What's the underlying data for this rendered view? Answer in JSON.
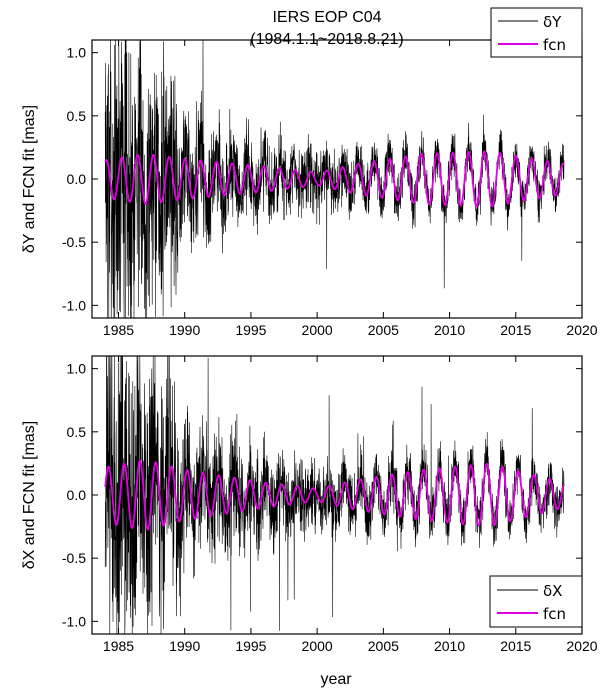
{
  "title_line1": "IERS EOP C04",
  "title_line2": "(1984.1.1~2018.8.21)",
  "colors": {
    "data_series": "#000000",
    "fit_series": "#e000e0"
  },
  "chart_data": [
    {
      "type": "line",
      "panel": "top",
      "xlabel": "",
      "ylabel": "δY and FCN fit [mas]",
      "xlim": [
        1983,
        2020
      ],
      "ylim": [
        -1.1,
        1.1
      ],
      "x_ticks": [
        "1985",
        "1990",
        "1995",
        "2000",
        "2005",
        "2010",
        "2015",
        "2020"
      ],
      "y_ticks": [
        "1.0",
        "0.5",
        "0.0",
        "-0.5",
        "-1.0"
      ],
      "legend_position": "top-right",
      "series": [
        {
          "name": "δY",
          "style": "noisy daily series",
          "x_range": [
            1984.0,
            2018.64
          ],
          "noise_amplitude_start": 0.55,
          "noise_amplitude_end": 0.1
        },
        {
          "name": "fcn",
          "style": "fit curve",
          "period_years": 1.19,
          "amplitude_points": [
            [
              1984,
              0.15
            ],
            [
              1987,
              0.2
            ],
            [
              1990,
              0.16
            ],
            [
              1996,
              0.1
            ],
            [
              2000,
              0.05
            ],
            [
              2003,
              0.12
            ],
            [
              2008,
              0.2
            ],
            [
              2013,
              0.22
            ],
            [
              2018.6,
              0.12
            ]
          ]
        }
      ]
    },
    {
      "type": "line",
      "panel": "bottom",
      "xlabel": "year",
      "ylabel": "δX and FCN fit [mas]",
      "xlim": [
        1983,
        2020
      ],
      "ylim": [
        -1.1,
        1.1
      ],
      "x_ticks": [
        "1985",
        "1990",
        "1995",
        "2000",
        "2005",
        "2010",
        "2015",
        "2020"
      ],
      "y_ticks": [
        "1.0",
        "0.5",
        "0.0",
        "-0.5",
        "-1.0"
      ],
      "legend_position": "bottom-right",
      "series": [
        {
          "name": "δX",
          "style": "noisy daily series",
          "x_range": [
            1984.0,
            2018.64
          ],
          "noise_amplitude_start": 0.55,
          "noise_amplitude_end": 0.12
        },
        {
          "name": "fcn",
          "style": "fit curve",
          "period_years": 1.19,
          "amplitude_points": [
            [
              1984,
              0.22
            ],
            [
              1987,
              0.28
            ],
            [
              1990,
              0.2
            ],
            [
              1996,
              0.1
            ],
            [
              2000,
              0.05
            ],
            [
              2003,
              0.12
            ],
            [
              2008,
              0.2
            ],
            [
              2013,
              0.25
            ],
            [
              2018.6,
              0.1
            ]
          ]
        }
      ]
    }
  ]
}
